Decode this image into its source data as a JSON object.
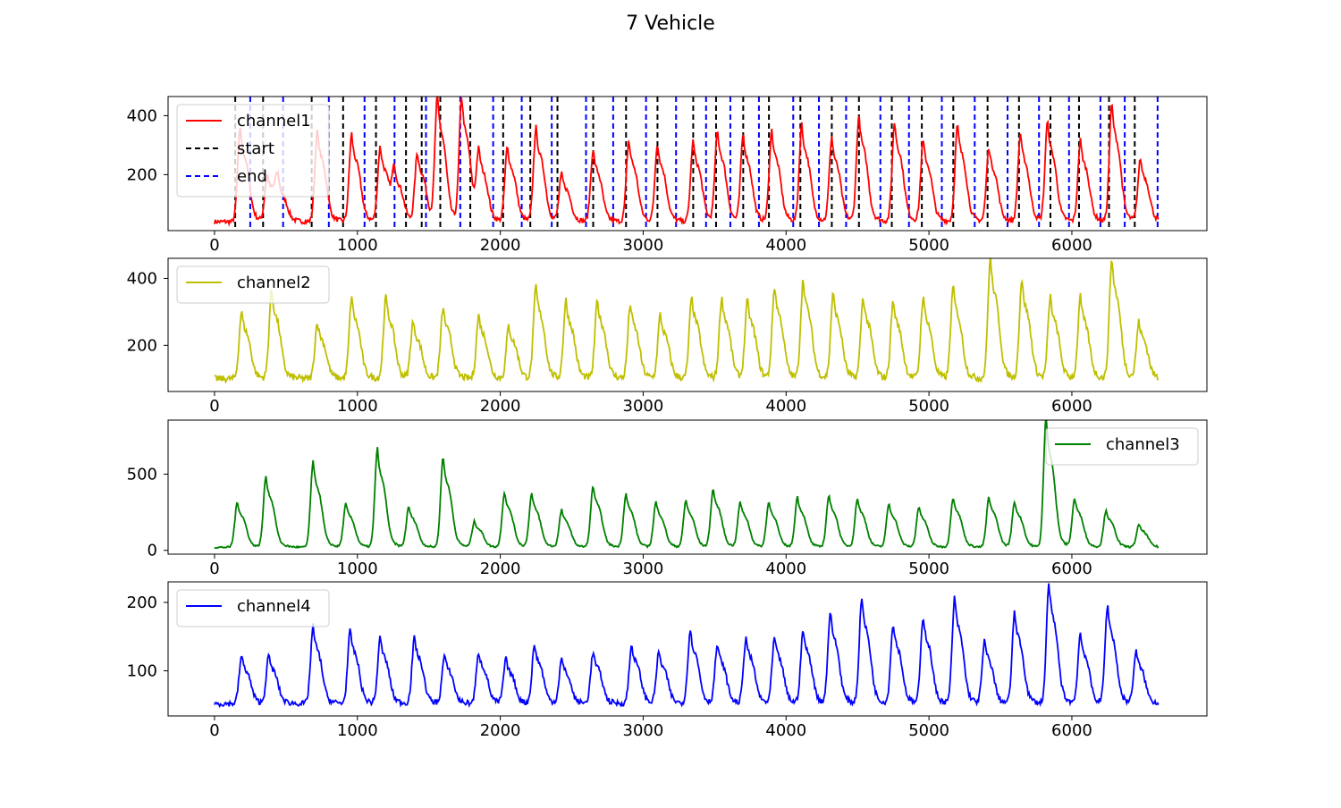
{
  "figure": {
    "title": "7 Vehicle"
  },
  "chart_data": [
    {
      "type": "line",
      "xlim": [
        -325,
        6945
      ],
      "ylim": [
        10,
        465
      ],
      "xticks": [
        0,
        1000,
        2000,
        3000,
        4000,
        5000,
        6000
      ],
      "yticks": [
        200,
        400
      ],
      "legend_position": "upper left",
      "colors": {
        "line": "#ff0000",
        "start": "#000000",
        "end": "#0000ff"
      },
      "series": [
        {
          "name": "channel1",
          "color": "#ff0000",
          "baseline": 40,
          "noise": 8,
          "peaks_x": [
            180,
            370,
            445,
            720,
            960,
            1160,
            1260,
            1420,
            1560,
            1730,
            1850,
            2050,
            2250,
            2430,
            2650,
            2900,
            3100,
            3350,
            3520,
            3700,
            3900,
            4110,
            4320,
            4510,
            4760,
            4960,
            5200,
            5420,
            5640,
            5830,
            6060,
            6280,
            6480
          ],
          "peaks_y": [
            340,
            190,
            150,
            330,
            320,
            280,
            200,
            260,
            440,
            440,
            260,
            280,
            340,
            190,
            270,
            300,
            290,
            300,
            330,
            320,
            330,
            350,
            310,
            380,
            360,
            300,
            350,
            280,
            320,
            360,
            300,
            420,
            240
          ]
        },
        {
          "name": "start",
          "color": "#000000",
          "style": "dashed",
          "x": [
            145,
            340,
            680,
            900,
            1130,
            1340,
            1450,
            1580,
            1790,
            2020,
            2210,
            2400,
            2650,
            2880,
            3100,
            3350,
            3510,
            3700,
            3880,
            4100,
            4320,
            4510,
            4740,
            4950,
            5170,
            5410,
            5630,
            5850,
            6050,
            6260,
            6440
          ]
        },
        {
          "name": "end",
          "color": "#0000ff",
          "style": "dashed",
          "x": [
            250,
            480,
            800,
            1050,
            1260,
            1480,
            1720,
            1950,
            2150,
            2360,
            2600,
            2790,
            3020,
            3230,
            3440,
            3610,
            3810,
            4050,
            4230,
            4420,
            4660,
            4860,
            5090,
            5320,
            5550,
            5770,
            5980,
            6200,
            6370,
            6600
          ]
        }
      ]
    },
    {
      "type": "line",
      "xlim": [
        -325,
        6945
      ],
      "ylim": [
        62,
        460
      ],
      "xticks": [
        0,
        1000,
        2000,
        3000,
        4000,
        5000,
        6000
      ],
      "yticks": [
        200,
        400
      ],
      "legend_position": "upper left",
      "series": [
        {
          "name": "channel2",
          "color": "#bfbf00",
          "baseline": 100,
          "noise": 10,
          "peaks_x": [
            190,
            400,
            720,
            960,
            1200,
            1390,
            1600,
            1850,
            2060,
            2250,
            2460,
            2680,
            2910,
            3120,
            3340,
            3550,
            3730,
            3920,
            4120,
            4330,
            4540,
            4750,
            4960,
            5170,
            5430,
            5650,
            5850,
            6060,
            6280,
            6470
          ],
          "peaks_y": [
            290,
            350,
            260,
            330,
            330,
            260,
            300,
            280,
            250,
            360,
            320,
            320,
            310,
            280,
            330,
            330,
            320,
            360,
            380,
            340,
            330,
            320,
            330,
            360,
            440,
            380,
            330,
            330,
            440,
            260
          ]
        }
      ]
    },
    {
      "type": "line",
      "xlim": [
        -325,
        6945
      ],
      "ylim": [
        -25,
        855
      ],
      "xticks": [
        0,
        1000,
        2000,
        3000,
        4000,
        5000,
        6000
      ],
      "yticks": [
        0,
        500
      ],
      "legend_position": "upper right",
      "series": [
        {
          "name": "channel3",
          "color": "#008000",
          "baseline": 20,
          "noise": 6,
          "peaks_x": [
            160,
            360,
            690,
            920,
            1140,
            1360,
            1600,
            1820,
            2030,
            2220,
            2430,
            2650,
            2880,
            3090,
            3300,
            3490,
            3680,
            3880,
            4080,
            4300,
            4500,
            4720,
            4930,
            5170,
            5420,
            5600,
            5820,
            6020,
            6240,
            6470
          ],
          "peaks_y": [
            300,
            460,
            550,
            290,
            630,
            270,
            580,
            180,
            360,
            350,
            250,
            400,
            350,
            300,
            310,
            380,
            300,
            300,
            330,
            340,
            320,
            290,
            270,
            330,
            330,
            300,
            830,
            320,
            250,
            160
          ]
        }
      ]
    },
    {
      "type": "line",
      "xlim": [
        -325,
        6945
      ],
      "ylim": [
        34,
        230
      ],
      "xticks": [
        0,
        1000,
        2000,
        3000,
        4000,
        5000,
        6000
      ],
      "yticks": [
        100,
        200
      ],
      "legend_position": "upper left",
      "series": [
        {
          "name": "channel4",
          "color": "#0000ff",
          "baseline": 52,
          "noise": 4,
          "peaks_x": [
            190,
            380,
            690,
            950,
            1160,
            1400,
            1610,
            1850,
            2040,
            2240,
            2430,
            2650,
            2920,
            3110,
            3330,
            3520,
            3720,
            3920,
            4120,
            4310,
            4530,
            4750,
            4960,
            5180,
            5390,
            5600,
            5840,
            6060,
            6250,
            6450
          ],
          "peaks_y": [
            118,
            118,
            158,
            153,
            143,
            143,
            118,
            123,
            113,
            133,
            113,
            123,
            133,
            123,
            153,
            133,
            143,
            143,
            153,
            178,
            198,
            163,
            173,
            198,
            138,
            178,
            218,
            148,
            188,
            123
          ]
        }
      ]
    }
  ]
}
